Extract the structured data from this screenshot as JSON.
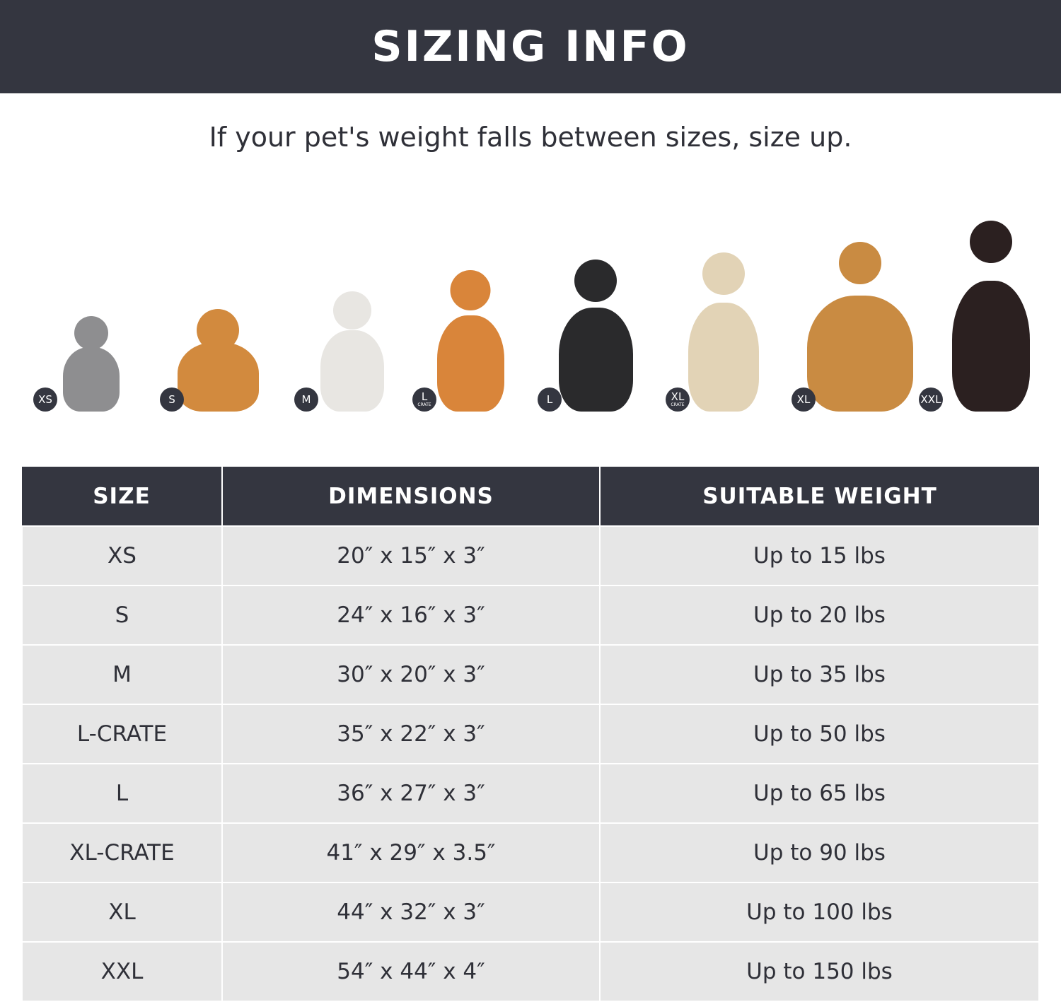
{
  "header": {
    "title": "SIZING INFO"
  },
  "subtitle": "If your pet's weight falls between sizes, size up.",
  "pets": [
    {
      "badge": "XS",
      "badge_sub": "",
      "color": "#8e8e90"
    },
    {
      "badge": "S",
      "badge_sub": "",
      "color": "#d28a3e"
    },
    {
      "badge": "M",
      "badge_sub": "",
      "color": "#e8e6e2"
    },
    {
      "badge": "L",
      "badge_sub": "CRATE",
      "color": "#d9853a"
    },
    {
      "badge": "L",
      "badge_sub": "",
      "color": "#2a2a2c"
    },
    {
      "badge": "XL",
      "badge_sub": "CRATE",
      "color": "#e2d3b6"
    },
    {
      "badge": "XL",
      "badge_sub": "",
      "color": "#c98b42"
    },
    {
      "badge": "XXL",
      "badge_sub": "",
      "color": "#2b2020"
    }
  ],
  "table": {
    "headers": [
      "SIZE",
      "DIMENSIONS",
      "SUITABLE WEIGHT"
    ],
    "rows": [
      [
        "XS",
        "20″ x 15″ x 3″",
        "Up to 15 lbs"
      ],
      [
        "S",
        "24″ x 16″ x 3″",
        "Up to 20 lbs"
      ],
      [
        "M",
        "30″ x 20″ x 3″",
        "Up to 35 lbs"
      ],
      [
        "L-CRATE",
        "35″ x 22″ x 3″",
        "Up to 50 lbs"
      ],
      [
        "L",
        "36″ x 27″ x 3″",
        "Up to 65 lbs"
      ],
      [
        "XL-CRATE",
        "41″ x 29″ x 3.5″",
        "Up to 90 lbs"
      ],
      [
        "XL",
        "44″ x 32″ x 3″",
        "Up to 100 lbs"
      ],
      [
        "XXL",
        "54″ x 44″ x 4″",
        "Up to 150 lbs"
      ]
    ]
  },
  "colors": {
    "dark": "#343640",
    "row": "#e6e6e6"
  }
}
